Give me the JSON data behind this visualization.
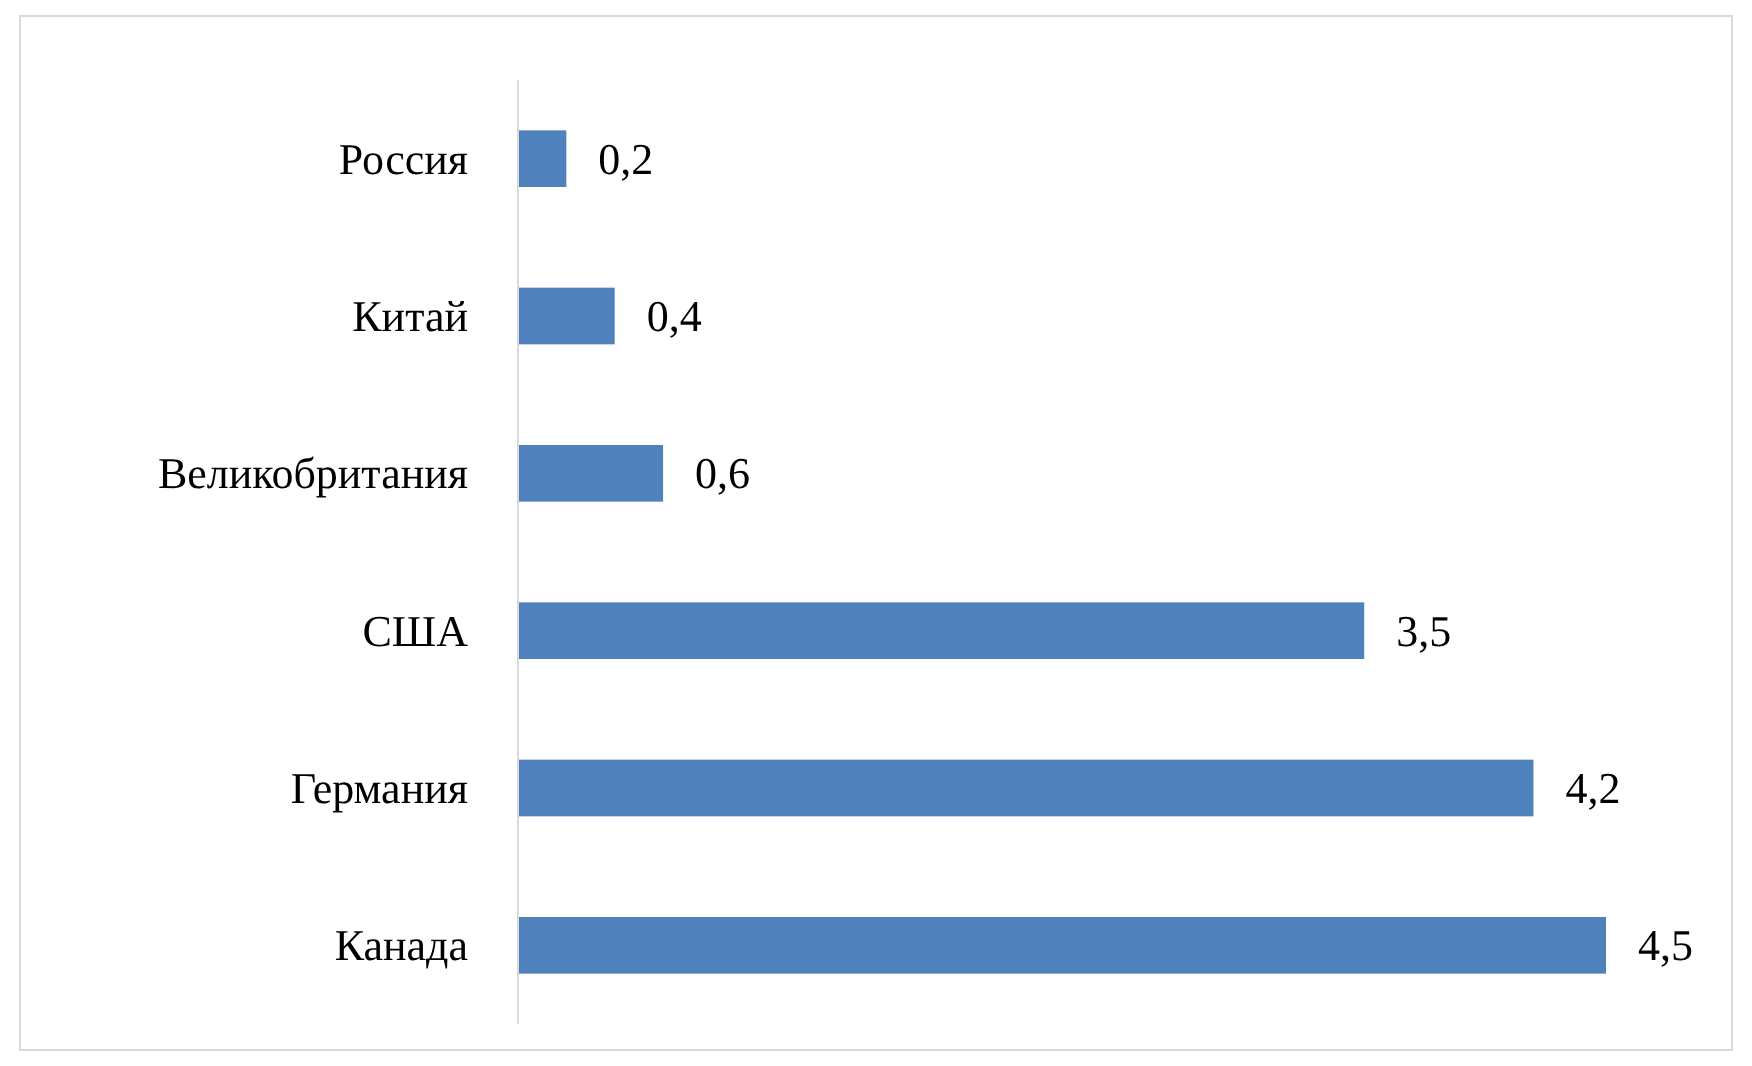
{
  "chart_data": {
    "type": "bar",
    "orientation": "horizontal",
    "categories": [
      "Россия",
      "Китай",
      "Великобритания",
      "США",
      "Германия",
      "Канада"
    ],
    "values": [
      0.2,
      0.4,
      0.6,
      3.5,
      4.2,
      4.5
    ],
    "value_labels": [
      "0,2",
      "0,4",
      "0,6",
      "3,5",
      "4,2",
      "4,5"
    ],
    "color": "#4f81bd"
  }
}
